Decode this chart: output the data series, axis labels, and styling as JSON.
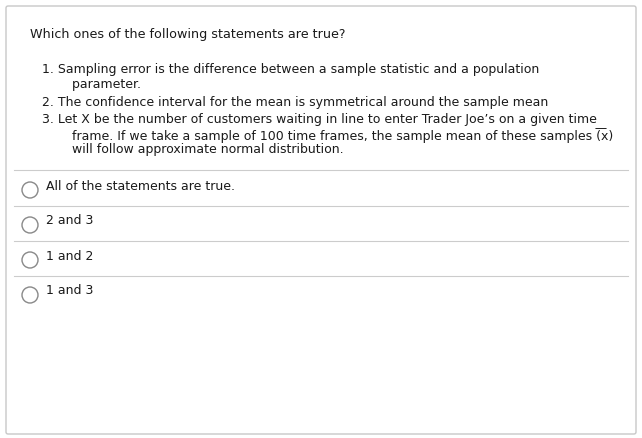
{
  "title": "Which ones of the following statements are true?",
  "stmt1_line1": "1. Sampling error is the difference between a sample statistic and a population",
  "stmt1_line2": "    parameter.",
  "stmt2_line1": "2. The confidence interval for the mean is symmetrical around the sample mean",
  "stmt3_line1": "3. Let X be the number of customers waiting in line to enter Trader Joe’s on a given time",
  "stmt3_line2": "    frame. If we take a sample of 100 time frames, the sample mean of these samples (͞x)",
  "stmt3_line3": "    will follow approximate normal distribution.",
  "options": [
    "All of the statements are true.",
    "2 and 3",
    "1 and 2",
    "1 and 3"
  ],
  "bg_color": "#ffffff",
  "border_color": "#c8c8c8",
  "text_color": "#1a1a1a",
  "divider_color": "#cccccc",
  "font_size": 9.0,
  "title_font_size": 9.2
}
